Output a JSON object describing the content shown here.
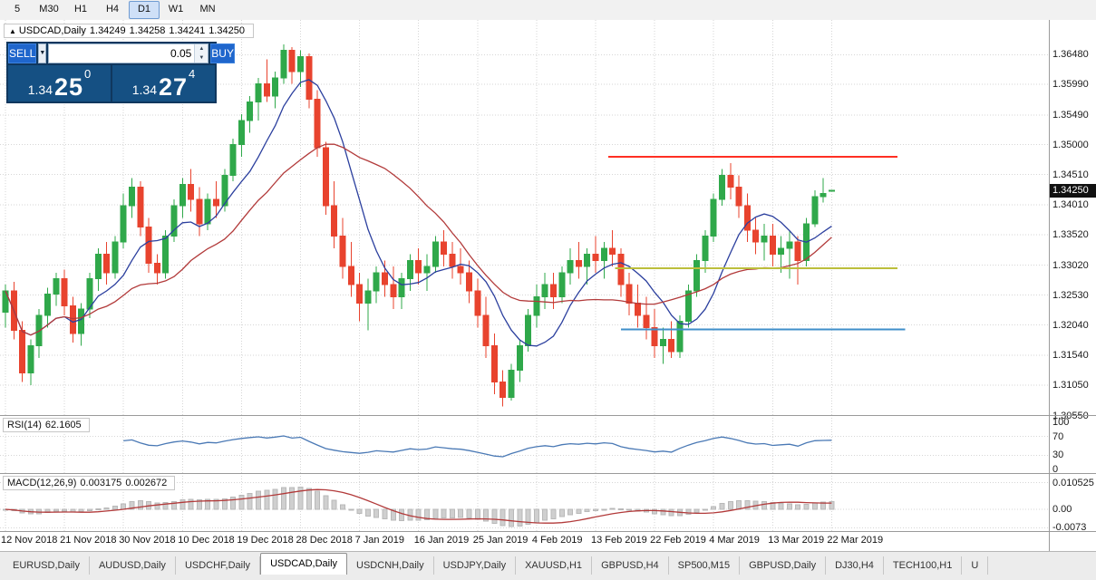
{
  "toolbar": {
    "timeframes": [
      {
        "label": "5",
        "active": false
      },
      {
        "label": "M30",
        "active": false
      },
      {
        "label": "H1",
        "active": false
      },
      {
        "label": "H4",
        "active": false
      },
      {
        "label": "D1",
        "active": true
      },
      {
        "label": "W1",
        "active": false
      },
      {
        "label": "MN",
        "active": false
      }
    ]
  },
  "chart": {
    "symbol_header": {
      "icon_glyph": "▲",
      "symbol": "USDCAD,Daily",
      "open": "1.34249",
      "high": "1.34258",
      "low": "1.34241",
      "close": "1.34250"
    },
    "current_price": "1.34250",
    "price_axis": [
      "1.36480",
      "1.35990",
      "1.35490",
      "1.35000",
      "1.34510",
      "1.34010",
      "1.33520",
      "1.33020",
      "1.32530",
      "1.32040",
      "1.31540",
      "1.31050",
      "1.30550"
    ]
  },
  "trade_panel": {
    "sell_label": "SELL",
    "buy_label": "BUY",
    "volume": "0.05",
    "dropdown_icon": "▼",
    "spin_up_icon": "▲",
    "spin_down_icon": "▼",
    "sell_price": {
      "small": "1.34",
      "big": "25",
      "sup": "0"
    },
    "buy_price": {
      "small": "1.34",
      "big": "27",
      "sup": "4"
    }
  },
  "rsi_panel": {
    "name": "RSI(14)",
    "value": "62.1605",
    "axis": [
      "100",
      "70",
      "30",
      "0"
    ]
  },
  "macd_panel": {
    "name": "MACD(12,26,9)",
    "main_value": "0.003175",
    "signal_value": "0.002672",
    "axis": [
      "0.010525",
      "0.00",
      "-0.0073"
    ]
  },
  "tabs": [
    {
      "label": "EURUSD,Daily",
      "active": false
    },
    {
      "label": "AUDUSD,Daily",
      "active": false
    },
    {
      "label": "USDCHF,Daily",
      "active": false
    },
    {
      "label": "USDCAD,Daily",
      "active": true
    },
    {
      "label": "USDCNH,Daily",
      "active": false
    },
    {
      "label": "USDJPY,Daily",
      "active": false
    },
    {
      "label": "XAUUSD,H1",
      "active": false
    },
    {
      "label": "GBPUSD,H4",
      "active": false
    },
    {
      "label": "SP500,M15",
      "active": false
    },
    {
      "label": "GBPUSD,Daily",
      "active": false
    },
    {
      "label": "DJ30,H4",
      "active": false
    },
    {
      "label": "TECH100,H1",
      "active": false
    },
    {
      "label": "U",
      "active": false
    }
  ],
  "chart_data": {
    "type": "candlestick",
    "title": "USDCAD Daily",
    "ylim": [
      1.3056,
      1.3705
    ],
    "colors": {
      "up": "#2fa84a",
      "down": "#e8432e",
      "ma_fast": "#2b3f9e",
      "ma_slow": "#b23a3a",
      "rsi": "#4a79b5",
      "macd_hist": "#cfcfcf",
      "macd_signal": "#b23a3a"
    },
    "moving_average_periods": {
      "fast": 8,
      "slow": 20
    },
    "rsi": {
      "period": 14,
      "levels": [
        70,
        30
      ]
    },
    "macd": {
      "fast": 12,
      "slow": 26,
      "signal": 9
    },
    "candles": [
      [
        1.3225,
        1.327,
        1.32,
        1.326
      ],
      [
        1.326,
        1.3275,
        1.318,
        1.3195
      ],
      [
        1.3195,
        1.321,
        1.311,
        1.3125
      ],
      [
        1.3125,
        1.318,
        1.3105,
        1.317
      ],
      [
        1.317,
        1.323,
        1.315,
        1.322
      ],
      [
        1.322,
        1.3265,
        1.32,
        1.3255
      ],
      [
        1.3255,
        1.329,
        1.3235,
        1.328
      ],
      [
        1.328,
        1.3295,
        1.322,
        1.3235
      ],
      [
        1.3235,
        1.325,
        1.3175,
        1.319
      ],
      [
        1.319,
        1.324,
        1.317,
        1.323
      ],
      [
        1.323,
        1.329,
        1.3215,
        1.328
      ],
      [
        1.328,
        1.333,
        1.326,
        1.332
      ],
      [
        1.332,
        1.334,
        1.327,
        1.329
      ],
      [
        1.329,
        1.335,
        1.328,
        1.334
      ],
      [
        1.334,
        1.342,
        1.333,
        1.34
      ],
      [
        1.34,
        1.3445,
        1.338,
        1.343
      ],
      [
        1.343,
        1.344,
        1.335,
        1.3365
      ],
      [
        1.3365,
        1.338,
        1.329,
        1.3305
      ],
      [
        1.3305,
        1.332,
        1.327,
        1.329
      ],
      [
        1.329,
        1.336,
        1.328,
        1.335
      ],
      [
        1.335,
        1.341,
        1.334,
        1.34
      ],
      [
        1.34,
        1.3445,
        1.338,
        1.3435
      ],
      [
        1.3435,
        1.346,
        1.339,
        1.341
      ],
      [
        1.341,
        1.343,
        1.335,
        1.337
      ],
      [
        1.337,
        1.342,
        1.336,
        1.341
      ],
      [
        1.341,
        1.344,
        1.338,
        1.34
      ],
      [
        1.34,
        1.346,
        1.339,
        1.345
      ],
      [
        1.345,
        1.351,
        1.344,
        1.35
      ],
      [
        1.35,
        1.355,
        1.348,
        1.354
      ],
      [
        1.354,
        1.358,
        1.352,
        1.357
      ],
      [
        1.357,
        1.361,
        1.354,
        1.36
      ],
      [
        1.36,
        1.364,
        1.357,
        1.358
      ],
      [
        1.358,
        1.362,
        1.356,
        1.361
      ],
      [
        1.361,
        1.3665,
        1.36,
        1.3655
      ],
      [
        1.3655,
        1.366,
        1.36,
        1.362
      ],
      [
        1.362,
        1.3655,
        1.3595,
        1.3645
      ],
      [
        1.3645,
        1.365,
        1.356,
        1.3575
      ],
      [
        1.3575,
        1.359,
        1.348,
        1.3495
      ],
      [
        1.3495,
        1.3505,
        1.3385,
        1.34
      ],
      [
        1.34,
        1.344,
        1.333,
        1.335
      ],
      [
        1.335,
        1.338,
        1.328,
        1.33
      ],
      [
        1.33,
        1.334,
        1.325,
        1.327
      ],
      [
        1.327,
        1.329,
        1.321,
        1.324
      ],
      [
        1.324,
        1.328,
        1.3195,
        1.326
      ],
      [
        1.326,
        1.33,
        1.324,
        1.329
      ],
      [
        1.329,
        1.331,
        1.325,
        1.327
      ],
      [
        1.327,
        1.33,
        1.323,
        1.325
      ],
      [
        1.325,
        1.329,
        1.323,
        1.328
      ],
      [
        1.328,
        1.332,
        1.326,
        1.331
      ],
      [
        1.331,
        1.333,
        1.327,
        1.329
      ],
      [
        1.329,
        1.332,
        1.326,
        1.33
      ],
      [
        1.33,
        1.335,
        1.329,
        1.334
      ],
      [
        1.334,
        1.336,
        1.33,
        1.332
      ],
      [
        1.332,
        1.334,
        1.328,
        1.33
      ],
      [
        1.33,
        1.333,
        1.327,
        1.329
      ],
      [
        1.329,
        1.331,
        1.324,
        1.326
      ],
      [
        1.326,
        1.328,
        1.32,
        1.322
      ],
      [
        1.322,
        1.325,
        1.315,
        1.317
      ],
      [
        1.317,
        1.319,
        1.309,
        1.311
      ],
      [
        1.311,
        1.313,
        1.307,
        1.3085
      ],
      [
        1.3085,
        1.314,
        1.308,
        1.313
      ],
      [
        1.313,
        1.318,
        1.311,
        1.317
      ],
      [
        1.317,
        1.323,
        1.316,
        1.322
      ],
      [
        1.322,
        1.327,
        1.32,
        1.325
      ],
      [
        1.325,
        1.329,
        1.323,
        1.327
      ],
      [
        1.327,
        1.329,
        1.323,
        1.325
      ],
      [
        1.325,
        1.33,
        1.324,
        1.329
      ],
      [
        1.329,
        1.333,
        1.327,
        1.331
      ],
      [
        1.331,
        1.334,
        1.328,
        1.33
      ],
      [
        1.33,
        1.333,
        1.327,
        1.332
      ],
      [
        1.332,
        1.335,
        1.329,
        1.331
      ],
      [
        1.331,
        1.334,
        1.328,
        1.333
      ],
      [
        1.333,
        1.336,
        1.33,
        1.332
      ],
      [
        1.332,
        1.333,
        1.325,
        1.327
      ],
      [
        1.327,
        1.329,
        1.322,
        1.324
      ],
      [
        1.324,
        1.327,
        1.32,
        1.322
      ],
      [
        1.322,
        1.325,
        1.318,
        1.32
      ],
      [
        1.32,
        1.323,
        1.315,
        1.317
      ],
      [
        1.317,
        1.32,
        1.314,
        1.318
      ],
      [
        1.318,
        1.321,
        1.315,
        1.316
      ],
      [
        1.316,
        1.322,
        1.315,
        1.321
      ],
      [
        1.321,
        1.327,
        1.32,
        1.326
      ],
      [
        1.326,
        1.332,
        1.325,
        1.331
      ],
      [
        1.331,
        1.336,
        1.329,
        1.335
      ],
      [
        1.335,
        1.342,
        1.334,
        1.341
      ],
      [
        1.341,
        1.346,
        1.34,
        1.345
      ],
      [
        1.345,
        1.347,
        1.341,
        1.343
      ],
      [
        1.343,
        1.345,
        1.338,
        1.34
      ],
      [
        1.34,
        1.342,
        1.334,
        1.336
      ],
      [
        1.336,
        1.338,
        1.332,
        1.334
      ],
      [
        1.334,
        1.337,
        1.331,
        1.335
      ],
      [
        1.335,
        1.337,
        1.33,
        1.332
      ],
      [
        1.332,
        1.335,
        1.329,
        1.333
      ],
      [
        1.333,
        1.336,
        1.328,
        1.334
      ],
      [
        1.334,
        1.335,
        1.327,
        1.331
      ],
      [
        1.331,
        1.338,
        1.33,
        1.337
      ],
      [
        1.337,
        1.3425,
        1.3365,
        1.3415
      ],
      [
        1.3415,
        1.3445,
        1.3405,
        1.342
      ],
      [
        1.34249,
        1.34258,
        1.34241,
        1.3425
      ]
    ],
    "date_labels": [
      {
        "bar": 0,
        "text": "12 Nov 2018"
      },
      {
        "bar": 7,
        "text": "21 Nov 2018"
      },
      {
        "bar": 14,
        "text": "30 Nov 2018"
      },
      {
        "bar": 21,
        "text": "10 Dec 2018"
      },
      {
        "bar": 28,
        "text": "19 Dec 2018"
      },
      {
        "bar": 35,
        "text": "28 Dec 2018"
      },
      {
        "bar": 42,
        "text": "7 Jan 2019"
      },
      {
        "bar": 49,
        "text": "16 Jan 2019"
      },
      {
        "bar": 56,
        "text": "25 Jan 2019"
      },
      {
        "bar": 63,
        "text": "4 Feb 2019"
      },
      {
        "bar": 70,
        "text": "13 Feb 2019"
      },
      {
        "bar": 77,
        "text": "22 Feb 2019"
      },
      {
        "bar": 84,
        "text": "4 Mar 2019"
      },
      {
        "bar": 91,
        "text": "13 Mar 2019"
      },
      {
        "bar": 98,
        "text": "22 Mar 2019"
      }
    ],
    "hlines": [
      {
        "name": "resistance-line-red",
        "color": "#ff2f23",
        "price": 1.348,
        "from_bar": 71.5,
        "to_bar": 105.8
      },
      {
        "name": "level-line-yellow",
        "color": "#bcbe3c",
        "price": 1.3297,
        "from_bar": 72.3,
        "to_bar": 105.8
      },
      {
        "name": "support-line-blue",
        "color": "#3f8fca",
        "price": 1.3197,
        "from_bar": 73,
        "to_bar": 106.7
      }
    ]
  }
}
